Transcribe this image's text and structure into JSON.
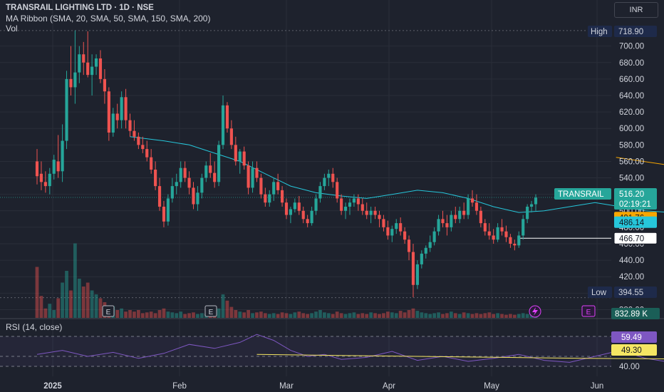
{
  "header": {
    "title_line": "TRANSRAIL LIGHTING LTD · 1D · NSE",
    "indicator_line": "MA Ribbon (SMA, 20, SMA, 50, SMA, 150, SMA, 200)",
    "vol_label": "Vol",
    "currency_button": "INR"
  },
  "rsi_panel": {
    "label": "RSI (14, close)"
  },
  "colors": {
    "up": "#26a69a",
    "down": "#ef5350",
    "sma20": "#26c6da",
    "sma50": "#f7a600",
    "rsi": "#7e57c2",
    "rsi_ma": "#f5e663",
    "bg": "#1e222d"
  },
  "chart_data": [
    {
      "type": "candlestick",
      "symbol": "TRANSRAIL",
      "x_ticks": [
        "2025",
        "Feb",
        "Mar",
        "Apr",
        "May",
        "Jun"
      ],
      "y_ticks": [
        "380.00",
        "400.00",
        "420.00",
        "440.00",
        "460.00",
        "480.00",
        "500.00",
        "520.00",
        "540.00",
        "560.00",
        "580.00",
        "600.00",
        "620.00",
        "640.00",
        "660.00",
        "680.00",
        "700.00"
      ],
      "ylim": [
        370,
        730
      ],
      "labels": {
        "high_tag": "High",
        "high_value": "718.90",
        "low_tag": "Low",
        "low_value": "394.55",
        "last_symbol": "TRANSRAIL",
        "last_price": "516.20",
        "countdown": "02:19:21",
        "sma50_value": "491.76",
        "sma20_value": "486.14",
        "level_value": "466.70",
        "volume_value": "832.89 K"
      },
      "events": [
        "E",
        "E",
        "E"
      ],
      "candles": [
        [
          560,
          575,
          532,
          542
        ],
        [
          545,
          560,
          525,
          535
        ],
        [
          535,
          548,
          522,
          530
        ],
        [
          530,
          552,
          520,
          545
        ],
        [
          545,
          568,
          538,
          562
        ],
        [
          560,
          592,
          540,
          548
        ],
        [
          548,
          605,
          535,
          585
        ],
        [
          585,
          670,
          575,
          660
        ],
        [
          660,
          700,
          640,
          650
        ],
        [
          650,
          719,
          630,
          668
        ],
        [
          668,
          700,
          655,
          690
        ],
        [
          690,
          705,
          665,
          680
        ],
        [
          680,
          718,
          662,
          665
        ],
        [
          665,
          690,
          640,
          675
        ],
        [
          675,
          690,
          665,
          685
        ],
        [
          685,
          695,
          655,
          660
        ],
        [
          660,
          672,
          630,
          645
        ],
        [
          645,
          650,
          585,
          595
        ],
        [
          595,
          625,
          590,
          618
        ],
        [
          618,
          630,
          600,
          610
        ],
        [
          610,
          645,
          600,
          638
        ],
        [
          638,
          648,
          600,
          610
        ],
        [
          610,
          618,
          590,
          597
        ],
        [
          597,
          610,
          585,
          590
        ],
        [
          590,
          595,
          575,
          580
        ],
        [
          580,
          590,
          570,
          575
        ],
        [
          575,
          585,
          560,
          565
        ],
        [
          565,
          575,
          545,
          550
        ],
        [
          550,
          560,
          525,
          530
        ],
        [
          530,
          540,
          500,
          505
        ],
        [
          505,
          512,
          480,
          487
        ],
        [
          487,
          520,
          482,
          515
        ],
        [
          515,
          540,
          510,
          530
        ],
        [
          530,
          545,
          520,
          535
        ],
        [
          535,
          560,
          528,
          552
        ],
        [
          552,
          560,
          535,
          540
        ],
        [
          540,
          548,
          520,
          528
        ],
        [
          528,
          535,
          502,
          508
        ],
        [
          508,
          530,
          500,
          522
        ],
        [
          522,
          545,
          515,
          540
        ],
        [
          540,
          560,
          535,
          555
        ],
        [
          555,
          570,
          540,
          546
        ],
        [
          546,
          560,
          528,
          535
        ],
        [
          535,
          585,
          530,
          580
        ],
        [
          580,
          640,
          575,
          628
        ],
        [
          628,
          632,
          595,
          600
        ],
        [
          600,
          610,
          575,
          580
        ],
        [
          580,
          590,
          555,
          560
        ],
        [
          560,
          575,
          545,
          572
        ],
        [
          572,
          578,
          550,
          555
        ],
        [
          555,
          560,
          520,
          528
        ],
        [
          528,
          560,
          522,
          552
        ],
        [
          552,
          560,
          535,
          540
        ],
        [
          540,
          545,
          515,
          520
        ],
        [
          520,
          528,
          505,
          510
        ],
        [
          510,
          525,
          505,
          520
        ],
        [
          520,
          540,
          512,
          535
        ],
        [
          535,
          545,
          520,
          525
        ],
        [
          525,
          530,
          505,
          510
        ],
        [
          510,
          515,
          490,
          495
        ],
        [
          495,
          505,
          485,
          502
        ],
        [
          502,
          515,
          498,
          510
        ],
        [
          510,
          518,
          495,
          500
        ],
        [
          500,
          505,
          485,
          490
        ],
        [
          490,
          495,
          480,
          485
        ],
        [
          485,
          505,
          482,
          500
        ],
        [
          500,
          520,
          495,
          515
        ],
        [
          515,
          535,
          510,
          530
        ],
        [
          530,
          545,
          525,
          540
        ],
        [
          540,
          550,
          530,
          545
        ],
        [
          545,
          552,
          528,
          535
        ],
        [
          535,
          540,
          510,
          515
        ],
        [
          515,
          520,
          495,
          500
        ],
        [
          500,
          510,
          490,
          505
        ],
        [
          505,
          515,
          495,
          510
        ],
        [
          510,
          520,
          505,
          515
        ],
        [
          515,
          520,
          500,
          508
        ],
        [
          508,
          515,
          495,
          500
        ],
        [
          500,
          510,
          490,
          495
        ],
        [
          495,
          505,
          485,
          500
        ],
        [
          500,
          505,
          490,
          495
        ],
        [
          495,
          500,
          480,
          490
        ],
        [
          490,
          495,
          475,
          480
        ],
        [
          480,
          488,
          465,
          470
        ],
        [
          470,
          482,
          462,
          478
        ],
        [
          478,
          490,
          472,
          485
        ],
        [
          485,
          492,
          470,
          475
        ],
        [
          475,
          480,
          460,
          465
        ],
        [
          465,
          470,
          440,
          450
        ],
        [
          450,
          460,
          395,
          410
        ],
        [
          410,
          440,
          405,
          435
        ],
        [
          435,
          452,
          430,
          448
        ],
        [
          448,
          458,
          442,
          455
        ],
        [
          455,
          470,
          450,
          462
        ],
        [
          462,
          480,
          458,
          475
        ],
        [
          475,
          495,
          470,
          490
        ],
        [
          490,
          500,
          480,
          485
        ],
        [
          485,
          495,
          470,
          480
        ],
        [
          480,
          500,
          475,
          495
        ],
        [
          495,
          505,
          485,
          490
        ],
        [
          490,
          505,
          485,
          500
        ],
        [
          500,
          510,
          490,
          495
        ],
        [
          495,
          520,
          490,
          515
        ],
        [
          515,
          525,
          505,
          510
        ],
        [
          510,
          520,
          495,
          500
        ],
        [
          500,
          505,
          480,
          485
        ],
        [
          485,
          490,
          470,
          475
        ],
        [
          475,
          485,
          465,
          470
        ],
        [
          470,
          478,
          460,
          465
        ],
        [
          465,
          485,
          462,
          480
        ],
        [
          480,
          490,
          470,
          475
        ],
        [
          475,
          482,
          462,
          468
        ],
        [
          468,
          472,
          455,
          460
        ],
        [
          460,
          465,
          452,
          458
        ],
        [
          458,
          475,
          455,
          470
        ],
        [
          470,
          495,
          465,
          490
        ],
        [
          490,
          508,
          485,
          505
        ],
        [
          505,
          512,
          498,
          508
        ],
        [
          508,
          520,
          500,
          516
        ]
      ],
      "sma20_points": [
        [
          22,
          590
        ],
        [
          30,
          585
        ],
        [
          36,
          580
        ],
        [
          42,
          570
        ],
        [
          48,
          560
        ],
        [
          54,
          545
        ],
        [
          60,
          530
        ],
        [
          66,
          522
        ],
        [
          72,
          518
        ],
        [
          78,
          515
        ],
        [
          84,
          520
        ],
        [
          90,
          525
        ],
        [
          96,
          522
        ],
        [
          102,
          515
        ],
        [
          108,
          505
        ],
        [
          114,
          498
        ],
        [
          120,
          500
        ],
        [
          126,
          505
        ],
        [
          132,
          510
        ],
        [
          138,
          505
        ],
        [
          144,
          500
        ],
        [
          150,
          498
        ],
        [
          156,
          495
        ],
        [
          162,
          490
        ],
        [
          168,
          478
        ],
        [
          174,
          470
        ],
        [
          180,
          462
        ],
        [
          186,
          470
        ],
        [
          192,
          480
        ],
        [
          198,
          486
        ],
        [
          204,
          488
        ],
        [
          210,
          490
        ],
        [
          216,
          492
        ],
        [
          222,
          490
        ],
        [
          228,
          488
        ],
        [
          234,
          487
        ],
        [
          240,
          486
        ],
        [
          246,
          486
        ],
        [
          252,
          487
        ],
        [
          256,
          488
        ]
      ],
      "sma50_points": [
        [
          137,
          565
        ],
        [
          150,
          555
        ],
        [
          162,
          540
        ],
        [
          174,
          525
        ],
        [
          186,
          515
        ],
        [
          198,
          508
        ],
        [
          210,
          505
        ],
        [
          222,
          502
        ],
        [
          234,
          498
        ],
        [
          246,
          494
        ],
        [
          256,
          492
        ]
      ],
      "volume": [
        0.65,
        0.28,
        0.12,
        0.18,
        0.1,
        0.25,
        0.45,
        0.6,
        0.35,
        0.95,
        0.5,
        0.4,
        0.45,
        0.35,
        0.3,
        0.25,
        0.2,
        0.12,
        0.15,
        0.1,
        0.12,
        0.08,
        0.1,
        0.08,
        0.1,
        0.06,
        0.07,
        0.08,
        0.06,
        0.1,
        0.12,
        0.08,
        0.07,
        0.06,
        0.08,
        0.05,
        0.06,
        0.07,
        0.05,
        0.06,
        0.05,
        0.08,
        0.1,
        0.12,
        0.3,
        0.22,
        0.14,
        0.1,
        0.08,
        0.07,
        0.1,
        0.06,
        0.07,
        0.08,
        0.06,
        0.05,
        0.06,
        0.05,
        0.07,
        0.06,
        0.05,
        0.07,
        0.08,
        0.06,
        0.05,
        0.06,
        0.08,
        0.1,
        0.07,
        0.06,
        0.05,
        0.08,
        0.06,
        0.05,
        0.06,
        0.07,
        0.05,
        0.06,
        0.05,
        0.07,
        0.06,
        0.05,
        0.06,
        0.08,
        0.07,
        0.06,
        0.09,
        0.07,
        0.1,
        0.12,
        0.09,
        0.07,
        0.06,
        0.05,
        0.06,
        0.07,
        0.05,
        0.06,
        0.08,
        0.06,
        0.05,
        0.07,
        0.06,
        0.05,
        0.06,
        0.05,
        0.06,
        0.07,
        0.05,
        0.06,
        0.05,
        0.04,
        0.05,
        0.04,
        0.05,
        0.06,
        0.05,
        0.06,
        0.07
      ]
    },
    {
      "type": "line",
      "name": "RSI (14, close)",
      "ylim": [
        30,
        80
      ],
      "y_ticks": [
        "40.00"
      ],
      "labels": {
        "rsi_value": "59.49",
        "rsi_ma_value": "49.30"
      },
      "rsi_points": [
        [
          0,
          52
        ],
        [
          6,
          56
        ],
        [
          12,
          50
        ],
        [
          18,
          54
        ],
        [
          24,
          48
        ],
        [
          30,
          53
        ],
        [
          36,
          62
        ],
        [
          42,
          58
        ],
        [
          48,
          64
        ],
        [
          52,
          72
        ],
        [
          56,
          66
        ],
        [
          60,
          56
        ],
        [
          64,
          50
        ],
        [
          68,
          52
        ],
        [
          72,
          47
        ],
        [
          78,
          49
        ],
        [
          84,
          55
        ],
        [
          90,
          46
        ],
        [
          96,
          50
        ],
        [
          102,
          45
        ],
        [
          108,
          48
        ],
        [
          114,
          52
        ],
        [
          120,
          46
        ],
        [
          126,
          44
        ],
        [
          132,
          50
        ],
        [
          138,
          56
        ],
        [
          144,
          48
        ],
        [
          150,
          44
        ],
        [
          156,
          42
        ],
        [
          162,
          40
        ],
        [
          168,
          44
        ],
        [
          174,
          36
        ],
        [
          180,
          32
        ],
        [
          186,
          40
        ],
        [
          190,
          50
        ],
        [
          196,
          44
        ],
        [
          202,
          54
        ],
        [
          208,
          58
        ],
        [
          214,
          46
        ],
        [
          220,
          50
        ],
        [
          226,
          44
        ],
        [
          232,
          52
        ],
        [
          238,
          56
        ],
        [
          244,
          52
        ],
        [
          248,
          58
        ],
        [
          252,
          58
        ],
        [
          256,
          60
        ]
      ],
      "rsi_ma_points": [
        [
          52,
          52
        ],
        [
          70,
          51
        ],
        [
          90,
          50
        ],
        [
          110,
          49
        ],
        [
          130,
          48
        ],
        [
          150,
          47.5
        ],
        [
          170,
          46.5
        ],
        [
          180,
          46
        ],
        [
          190,
          46.5
        ],
        [
          200,
          47
        ],
        [
          210,
          48
        ],
        [
          220,
          48.5
        ],
        [
          230,
          48.5
        ],
        [
          240,
          49
        ],
        [
          250,
          50
        ],
        [
          256,
          51
        ]
      ]
    }
  ]
}
